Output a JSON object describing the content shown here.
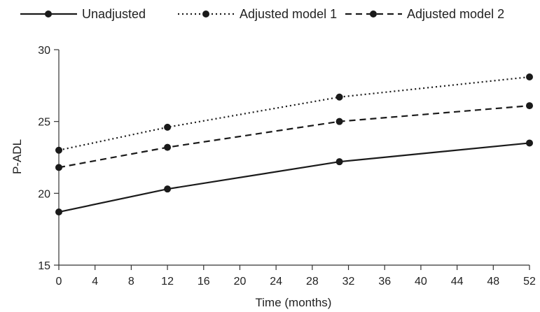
{
  "chart_data": {
    "type": "line",
    "title": "",
    "xlabel": "Time (months)",
    "ylabel": "P-ADL",
    "xlim": [
      0,
      52
    ],
    "ylim": [
      15,
      30
    ],
    "xticks": [
      0,
      4,
      8,
      12,
      16,
      20,
      24,
      28,
      32,
      36,
      40,
      44,
      48,
      52
    ],
    "yticks": [
      15,
      20,
      25,
      30
    ],
    "x": [
      0,
      12,
      31,
      52
    ],
    "grid": false,
    "legend_position": "top",
    "series": [
      {
        "name": "Unadjusted",
        "style": "solid",
        "color": "#1a1a1a",
        "values": [
          18.7,
          20.3,
          22.2,
          23.5
        ]
      },
      {
        "name": "Adjusted model 1",
        "style": "dotted",
        "color": "#1a1a1a",
        "values": [
          23.0,
          24.6,
          26.7,
          28.1
        ]
      },
      {
        "name": "Adjusted model 2",
        "style": "dashed",
        "color": "#1a1a1a",
        "values": [
          21.8,
          23.2,
          25.0,
          26.1
        ]
      }
    ]
  }
}
